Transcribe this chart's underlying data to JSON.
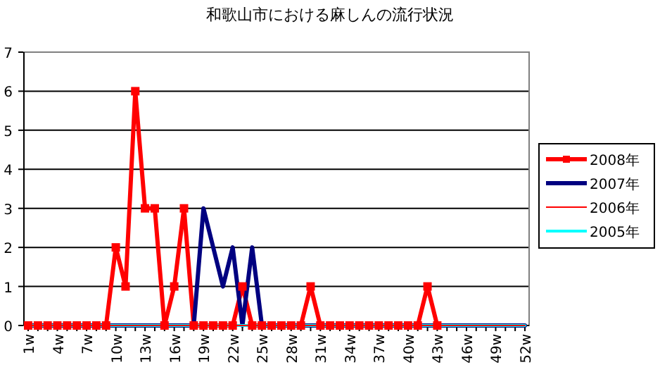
{
  "chart_data": {
    "type": "line",
    "title": "和歌山市における麻しんの流行状況",
    "categories": [
      "1w",
      null,
      null,
      "4w",
      null,
      null,
      "7w",
      null,
      null,
      "10w",
      null,
      null,
      "13w",
      null,
      null,
      "16w",
      null,
      null,
      "19w",
      null,
      null,
      "22w",
      null,
      null,
      "25w",
      null,
      null,
      "28w",
      null,
      null,
      "31w",
      null,
      null,
      "34w",
      null,
      null,
      "37w",
      null,
      null,
      "40w",
      null,
      null,
      "43w",
      null,
      null,
      "46w",
      null,
      null,
      "49w",
      null,
      null,
      "52w"
    ],
    "series": [
      {
        "name": "2008年",
        "color": "#ff0000",
        "marker": "square",
        "values": [
          0,
          0,
          0,
          0,
          0,
          0,
          0,
          0,
          0,
          2,
          1,
          6,
          3,
          3,
          0,
          1,
          3,
          0,
          0,
          0,
          0,
          0,
          1,
          0,
          0,
          0,
          0,
          0,
          0,
          1,
          0,
          0,
          0,
          0,
          0,
          0,
          0,
          0,
          0,
          0,
          0,
          1,
          0,
          null,
          null,
          null,
          null,
          null,
          null,
          null,
          null,
          null
        ]
      },
      {
        "name": "2007年",
        "color": "#000080",
        "values": [
          0,
          0,
          0,
          0,
          0,
          0,
          0,
          0,
          0,
          0,
          0,
          0,
          0,
          0,
          0,
          0,
          0,
          0,
          3,
          2,
          1,
          2,
          0,
          2,
          0,
          0,
          0,
          0,
          0,
          0,
          0,
          0,
          0,
          0,
          0,
          0,
          0,
          0,
          0,
          0,
          0,
          0,
          0,
          0,
          0,
          0,
          0,
          0,
          0,
          0,
          0,
          0
        ]
      },
      {
        "name": "2006年",
        "color": "#ff0000",
        "values": [
          0,
          0,
          0,
          0,
          0,
          0,
          0,
          0,
          0,
          0,
          0,
          0,
          0,
          0,
          0,
          0,
          0,
          0,
          0,
          0,
          0,
          0,
          0,
          0,
          0,
          0,
          0,
          0,
          0,
          0,
          0,
          0,
          0,
          0,
          0,
          0,
          0,
          0,
          0,
          0,
          0,
          0,
          0,
          0,
          0,
          0,
          0,
          0,
          0,
          0,
          0,
          0
        ]
      },
      {
        "name": "2005年",
        "color": "#00ffff",
        "values": [
          0,
          0,
          0,
          0,
          0,
          0,
          0,
          0,
          0,
          0,
          0,
          0,
          0,
          0,
          0,
          0,
          0,
          0,
          0,
          0,
          0,
          0,
          0,
          0,
          0,
          0,
          0,
          0,
          0,
          0,
          0,
          0,
          0,
          0,
          0,
          0,
          0,
          0,
          0,
          0,
          0,
          0,
          0,
          0,
          0,
          0,
          0,
          0,
          0,
          0,
          0,
          0
        ]
      }
    ],
    "ylim": [
      0,
      7
    ],
    "yticks": [
      0,
      1,
      2,
      3,
      4,
      5,
      6,
      7
    ],
    "grid": "y",
    "legend": "right"
  }
}
